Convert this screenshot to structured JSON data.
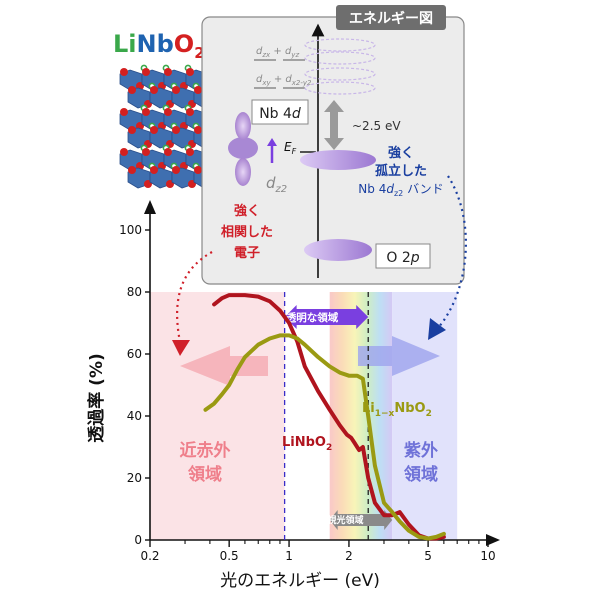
{
  "title": {
    "li": "Li",
    "nb": "Nb",
    "o": "O",
    "sub": "2"
  },
  "energy_diagram": {
    "header": "エネルギー図",
    "levels": [
      {
        "a": "d",
        "as": "zx",
        "b": "d",
        "bs": "yz"
      },
      {
        "a": "d",
        "as": "xy",
        "b": "d",
        "bs": "x2-y2"
      }
    ],
    "nb4d_label": "Nb 4",
    "nb4d_italic": "d",
    "gap_label": "~2.5 eV",
    "ef_label": "E",
    "ef_sub": "F",
    "dz2_label": "d",
    "dz2_sub": "z2",
    "o2p_label": "O 2",
    "o2p_italic": "p",
    "left_note": [
      "強く",
      "相関した",
      "電子"
    ],
    "right_note_1": "強く",
    "right_note_2": "孤立した",
    "right_note_3a": "Nb 4",
    "right_note_3b": "d",
    "right_note_3c": "z2",
    "right_note_3d": " バンド"
  },
  "regions": {
    "near_ir": [
      "近赤外",
      "領域"
    ],
    "uv": [
      "紫外",
      "領域"
    ],
    "transparent": "透明な領域",
    "visible": "可視光領域"
  },
  "series_labels": {
    "linbo2": "LiNbO",
    "linbo2_sub": "2",
    "li1x_a": "Li",
    "li1x_sub": "1−x",
    "li1x_b": "NbO",
    "li1x_sub2": "2"
  },
  "colors": {
    "linbo2": "#b0141e",
    "li1x": "#9a9a12",
    "red_note": "#d0202a",
    "blue_note": "#1a3fa0"
  },
  "chart_data": {
    "type": "line",
    "xlabel": "光のエネルギー (eV)",
    "ylabel": "透過率 (%)",
    "x_scale": "log",
    "xlim": [
      0.2,
      10
    ],
    "ylim": [
      0,
      100
    ],
    "x_ticks": [
      0.2,
      0.5,
      1,
      2,
      5,
      10
    ],
    "y_ticks": [
      0,
      20,
      40,
      60,
      80,
      100
    ],
    "series": [
      {
        "name": "LiNbO2",
        "x": [
          0.42,
          0.46,
          0.5,
          0.55,
          0.6,
          0.7,
          0.8,
          0.9,
          1.0,
          1.1,
          1.2,
          1.4,
          1.6,
          1.8,
          1.95,
          2.05,
          2.15,
          2.25,
          2.35,
          2.5,
          2.7,
          3.0,
          3.3,
          3.6,
          4.0,
          4.5,
          5.0,
          5.5,
          6.0
        ],
        "y": [
          76,
          78,
          79,
          79,
          79,
          78.5,
          77,
          74,
          70,
          64,
          56,
          48,
          42,
          37,
          34,
          33,
          31,
          29,
          30,
          20,
          12,
          8,
          8,
          9,
          5,
          1.5,
          0.5,
          0.5,
          1
        ]
      },
      {
        "name": "Li1-xNbO2",
        "x": [
          0.38,
          0.42,
          0.46,
          0.5,
          0.55,
          0.6,
          0.7,
          0.8,
          0.9,
          1.0,
          1.1,
          1.2,
          1.4,
          1.6,
          1.8,
          2.0,
          2.2,
          2.35,
          2.5,
          2.7,
          3.0,
          3.3,
          3.6,
          4.0,
          4.5,
          5.0,
          5.5,
          6.0
        ],
        "y": [
          42,
          44,
          47,
          50,
          55,
          59,
          63,
          65,
          66,
          66,
          65,
          63,
          59,
          56,
          54,
          53,
          53,
          52,
          40,
          24,
          12,
          9,
          6,
          3,
          1,
          0.5,
          1,
          2
        ]
      }
    ],
    "vlines": [
      0.95,
      2.5
    ],
    "transparent_range": [
      0.95,
      2.5
    ],
    "visible_range": [
      1.6,
      3.3
    ]
  }
}
